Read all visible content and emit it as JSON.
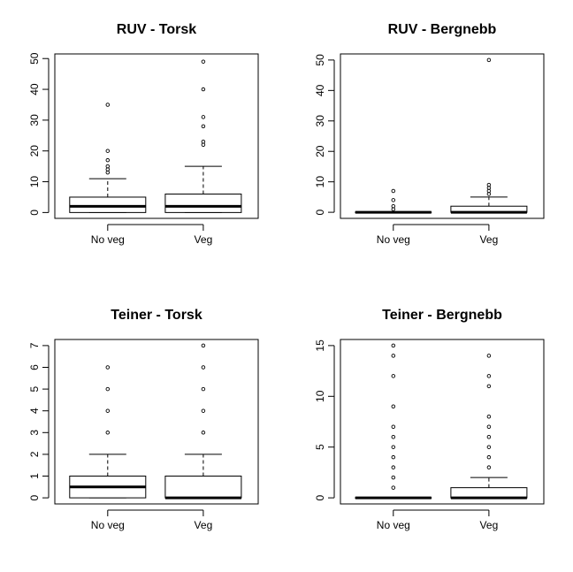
{
  "chart_data": [
    {
      "type": "boxplot",
      "title": "RUV - Torsk",
      "categories": [
        "No veg",
        "Veg"
      ],
      "yticks": [
        0,
        10,
        20,
        30,
        40,
        50
      ],
      "ylim": [
        -1.9,
        51.5
      ],
      "boxes": [
        {
          "name": "No veg",
          "min": 0,
          "q1": 0,
          "median": 2,
          "q3": 5,
          "max": 11,
          "outliers": [
            13,
            14,
            15,
            17,
            20,
            35
          ]
        },
        {
          "name": "Veg",
          "min": 0,
          "q1": 0,
          "median": 2,
          "q3": 6,
          "max": 15,
          "outliers": [
            22,
            23,
            28,
            31,
            40,
            49
          ]
        }
      ]
    },
    {
      "type": "boxplot",
      "title": "RUV - Bergnebb",
      "categories": [
        "No veg",
        "Veg"
      ],
      "yticks": [
        0,
        10,
        20,
        30,
        40,
        50
      ],
      "ylim": [
        -2,
        52
      ],
      "boxes": [
        {
          "name": "No veg",
          "min": 0,
          "q1": 0,
          "median": 0,
          "q3": 0,
          "max": 0,
          "outliers": [
            1,
            2,
            4,
            7
          ]
        },
        {
          "name": "Veg",
          "min": 0,
          "q1": 0,
          "median": 0,
          "q3": 2,
          "max": 5,
          "outliers": [
            6,
            7,
            8,
            9,
            50
          ]
        }
      ]
    },
    {
      "type": "boxplot",
      "title": "Teiner - Torsk",
      "categories": [
        "No veg",
        "Veg"
      ],
      "yticks": [
        0,
        1,
        2,
        3,
        4,
        5,
        6,
        7
      ],
      "ylim": [
        -0.28,
        7.28
      ],
      "boxes": [
        {
          "name": "No veg",
          "min": 0,
          "q1": 0,
          "median": 0.5,
          "q3": 1,
          "max": 2,
          "outliers": [
            3,
            4,
            5,
            6
          ]
        },
        {
          "name": "Veg",
          "min": 0,
          "q1": 0,
          "median": 0,
          "q3": 1,
          "max": 2,
          "outliers": [
            3,
            4,
            5,
            6,
            7
          ]
        }
      ]
    },
    {
      "type": "boxplot",
      "title": "Teiner - Bergnebb",
      "categories": [
        "No veg",
        "Veg"
      ],
      "yticks": [
        0,
        5,
        10,
        15
      ],
      "ylim": [
        -0.6,
        15.6
      ],
      "boxes": [
        {
          "name": "No veg",
          "min": 0,
          "q1": 0,
          "median": 0,
          "q3": 0,
          "max": 0,
          "outliers": [
            1,
            2,
            3,
            4,
            5,
            6,
            7,
            9,
            12,
            14,
            15
          ]
        },
        {
          "name": "Veg",
          "min": 0,
          "q1": 0,
          "median": 0,
          "q3": 1,
          "max": 2,
          "outliers": [
            3,
            4,
            5,
            6,
            7,
            8,
            11,
            12,
            14
          ]
        }
      ]
    }
  ]
}
